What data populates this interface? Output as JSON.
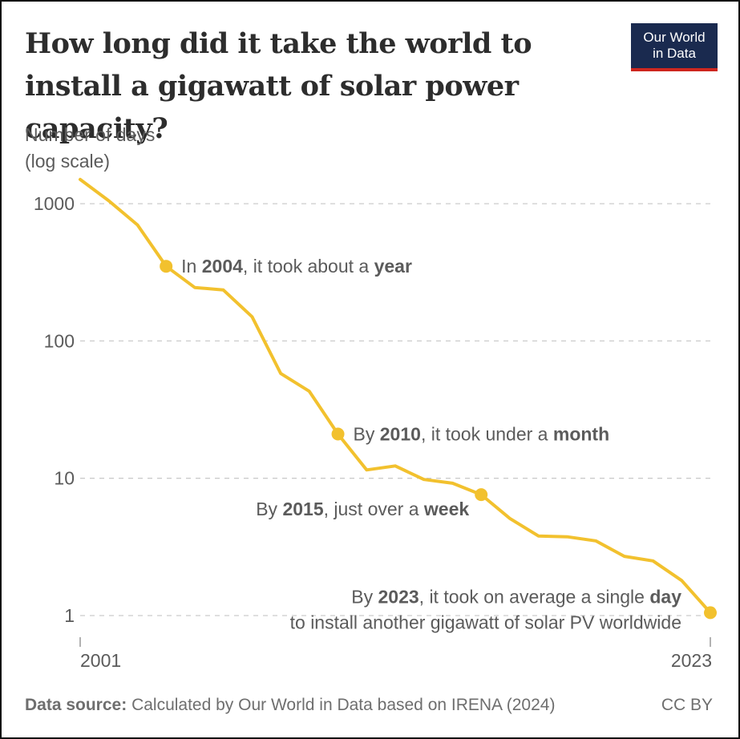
{
  "header": {
    "title": "How long did it take the world to install a gigawatt of solar power capacity?",
    "logo_line1": "Our World",
    "logo_line2": "in Data"
  },
  "footer": {
    "source_label": "Data source:",
    "source_text": "Calculated by Our World in Data based on IRENA (2024)",
    "license": "CC BY"
  },
  "colors": {
    "line": "#f2c12e",
    "grid": "#cccccc",
    "logo_bg": "#1a2a4f",
    "logo_accent": "#ce261e"
  },
  "chart_data": {
    "type": "line",
    "ylabel_line1": "Number of days",
    "ylabel_line2": "(log scale)",
    "yscale": "log",
    "ylim": [
      1,
      1700
    ],
    "yticks": [
      1,
      10,
      100,
      1000
    ],
    "ytick_labels": [
      "1",
      "10",
      "100",
      "1000"
    ],
    "xlim": [
      2001,
      2023
    ],
    "xtick_labels": [
      "2001",
      "2023"
    ],
    "grid": "horizontal dashed",
    "series": [
      {
        "x": [
          2001,
          2002,
          2003,
          2004,
          2005,
          2006,
          2007,
          2008,
          2009,
          2010,
          2011,
          2012,
          2013,
          2014,
          2015,
          2016,
          2017,
          2018,
          2019,
          2020,
          2021,
          2022,
          2023
        ],
        "y": [
          1500,
          1050,
          700,
          350,
          245,
          235,
          150,
          58,
          43,
          21,
          11.5,
          12.3,
          9.8,
          9.2,
          7.6,
          5.1,
          3.8,
          3.75,
          3.5,
          2.7,
          2.5,
          1.8,
          1.05
        ]
      }
    ],
    "annotations": [
      {
        "year": 2004,
        "value": 350,
        "parts": [
          [
            "In ",
            false
          ],
          [
            "2004",
            true
          ],
          [
            ", it took about a ",
            false
          ],
          [
            "year",
            true
          ]
        ],
        "side": "right"
      },
      {
        "year": 2010,
        "value": 21,
        "parts": [
          [
            "By ",
            false
          ],
          [
            "2010",
            true
          ],
          [
            ", it took under a ",
            false
          ],
          [
            "month",
            true
          ]
        ],
        "side": "right"
      },
      {
        "year": 2015,
        "value": 7.6,
        "parts": [
          [
            "By ",
            false
          ],
          [
            "2015",
            true
          ],
          [
            ", just over a ",
            false
          ],
          [
            "week",
            true
          ]
        ],
        "side": "left"
      },
      {
        "year": 2023,
        "value": 1.05,
        "parts": [
          [
            "By ",
            false
          ],
          [
            "2023",
            true
          ],
          [
            ", it took on average a single ",
            false
          ],
          [
            "day",
            true
          ]
        ],
        "line2": "to install another gigawatt of solar PV worldwide",
        "side": "left"
      }
    ]
  }
}
